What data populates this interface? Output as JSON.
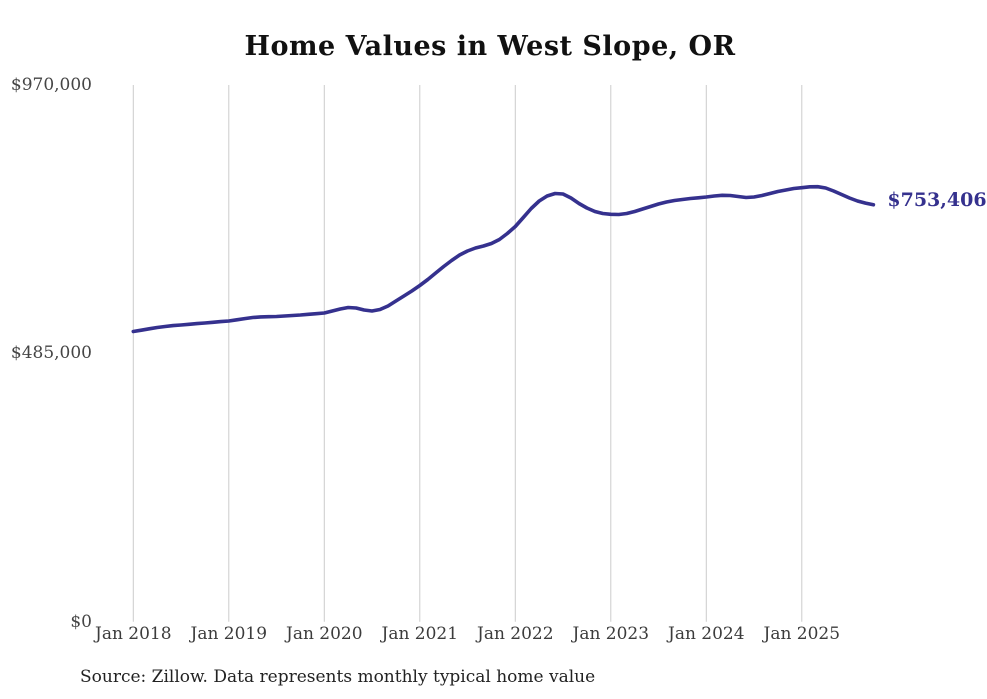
{
  "title": "Home Values in West Slope, OR",
  "source_note": "Source: Zillow. Data represents monthly typical home value",
  "end_label": "$753,406",
  "colors": {
    "line": "#35318e",
    "end_label": "#35318e",
    "grid": "#cccccc",
    "axis_text": "#454545",
    "title_text": "#111111",
    "source_text": "#222222",
    "background": "#ffffff"
  },
  "chart_data": {
    "type": "line",
    "title": "Home Values in West Slope, OR",
    "xlabel": "",
    "ylabel": "",
    "ylim": [
      0,
      970000
    ],
    "grid": "vertical-only",
    "legend": "none",
    "y_ticks": [
      {
        "label": "$0",
        "value": 0
      },
      {
        "label": "$485,000",
        "value": 485000
      },
      {
        "label": "$970,000",
        "value": 970000
      }
    ],
    "x_ticks": [
      {
        "label": "Jan 2018",
        "month_index": 0
      },
      {
        "label": "Jan 2019",
        "month_index": 12
      },
      {
        "label": "Jan 2020",
        "month_index": 24
      },
      {
        "label": "Jan 2021",
        "month_index": 36
      },
      {
        "label": "Jan 2022",
        "month_index": 48
      },
      {
        "label": "Jan 2023",
        "month_index": 60
      },
      {
        "label": "Jan 2024",
        "month_index": 72
      },
      {
        "label": "Jan 2025",
        "month_index": 84
      }
    ],
    "series_name": "Typical home value (monthly)",
    "months": [
      "2018-01",
      "2018-02",
      "2018-03",
      "2018-04",
      "2018-05",
      "2018-06",
      "2018-07",
      "2018-08",
      "2018-09",
      "2018-10",
      "2018-11",
      "2018-12",
      "2019-01",
      "2019-02",
      "2019-03",
      "2019-04",
      "2019-05",
      "2019-06",
      "2019-07",
      "2019-08",
      "2019-09",
      "2019-10",
      "2019-11",
      "2019-12",
      "2020-01",
      "2020-02",
      "2020-03",
      "2020-04",
      "2020-05",
      "2020-06",
      "2020-07",
      "2020-08",
      "2020-09",
      "2020-10",
      "2020-11",
      "2020-12",
      "2021-01",
      "2021-02",
      "2021-03",
      "2021-04",
      "2021-05",
      "2021-06",
      "2021-07",
      "2021-08",
      "2021-09",
      "2021-10",
      "2021-11",
      "2021-12",
      "2022-01",
      "2022-02",
      "2022-03",
      "2022-04",
      "2022-05",
      "2022-06",
      "2022-07",
      "2022-08",
      "2022-09",
      "2022-10",
      "2022-11",
      "2022-12",
      "2023-01",
      "2023-02",
      "2023-03",
      "2023-04",
      "2023-05",
      "2023-06",
      "2023-07",
      "2023-08",
      "2023-09",
      "2023-10",
      "2023-11",
      "2023-12",
      "2024-01",
      "2024-02",
      "2024-03",
      "2024-04",
      "2024-05",
      "2024-06",
      "2024-07",
      "2024-08",
      "2024-09",
      "2024-10",
      "2024-11",
      "2024-12",
      "2025-01",
      "2025-02",
      "2025-03",
      "2025-04",
      "2025-05",
      "2025-06",
      "2025-07",
      "2025-08",
      "2025-09",
      "2025-10"
    ],
    "values": [
      524500,
      526900,
      529300,
      531700,
      533500,
      535100,
      536200,
      537500,
      538700,
      539900,
      541100,
      542300,
      543500,
      545700,
      547800,
      549800,
      550800,
      551300,
      551600,
      552500,
      553400,
      554300,
      555500,
      556700,
      557900,
      561500,
      565100,
      567900,
      567000,
      563300,
      561500,
      564200,
      570600,
      579600,
      588600,
      597700,
      607600,
      618500,
      630200,
      642000,
      652800,
      662800,
      670000,
      675400,
      679000,
      683600,
      690800,
      701600,
      714300,
      730500,
      746800,
      760300,
      769400,
      773900,
      773000,
      765800,
      755800,
      747700,
      741400,
      737800,
      736300,
      736000,
      737800,
      741400,
      745900,
      750400,
      755000,
      758600,
      761300,
      763100,
      764900,
      766200,
      767600,
      769400,
      770700,
      770300,
      768500,
      766700,
      767600,
      770300,
      773900,
      777500,
      780200,
      782900,
      784400,
      786000,
      786200,
      783800,
      778400,
      772100,
      765800,
      760400,
      756500,
      753406
    ],
    "latest_value": 753406,
    "latest_value_label": "$753,406"
  }
}
